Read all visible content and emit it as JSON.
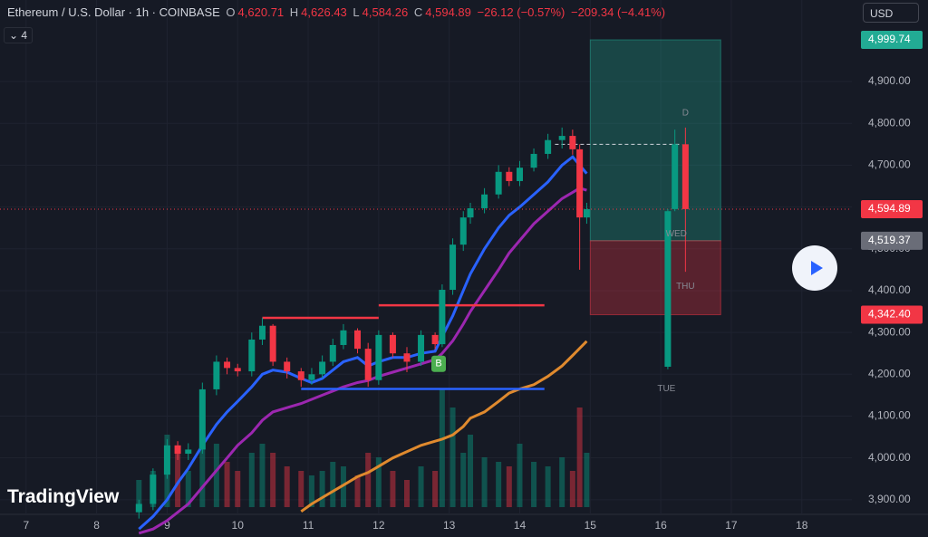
{
  "chart_data": {
    "type": "candlestick",
    "title": "Ethereum / U.S. Dollar · 1h · COINBASE",
    "legend_values": [
      {
        "key": "O",
        "value": "4,620.71"
      },
      {
        "key": "H",
        "value": "4,626.43"
      },
      {
        "key": "L",
        "value": "4,584.26"
      },
      {
        "key": "C",
        "value": "4,594.89"
      }
    ],
    "change": "−26.12 (−0.57%)",
    "change_period": "−209.34 (−4.41%)",
    "indicator_count": "4",
    "currency": "USD",
    "logo": "TradingView",
    "up_color": "#089981",
    "down_color": "#f23645",
    "xlim": [
      6.63,
      18.71
    ],
    "ylim": [
      3865,
      5095
    ],
    "xticks": [
      7,
      8,
      9,
      10,
      11,
      12,
      13,
      14,
      15,
      16,
      17,
      18
    ],
    "yticks": [
      {
        "value": 3900,
        "label": "3,900.00"
      },
      {
        "value": 4000,
        "label": "4,000.00"
      },
      {
        "value": 4100,
        "label": "4,100.00"
      },
      {
        "value": 4200,
        "label": "4,200.00"
      },
      {
        "value": 4300,
        "label": "4,300.00"
      },
      {
        "value": 4400,
        "label": "4,400.00"
      },
      {
        "value": 4500,
        "label": "4,500.00"
      },
      {
        "value": 4600,
        "label": "4,600.00"
      },
      {
        "value": 4700,
        "label": "4,700.00"
      },
      {
        "value": 4800,
        "label": "4,800.00"
      },
      {
        "value": 4900,
        "label": "4,900.00"
      }
    ],
    "grid": true,
    "x": [
      8.6,
      8.8,
      9,
      9.15,
      9.3,
      9.5,
      9.7,
      9.85,
      10,
      10.2,
      10.35,
      10.5,
      10.7,
      10.9,
      11.05,
      11.2,
      11.35,
      11.5,
      11.7,
      11.85,
      12,
      12.2,
      12.4,
      12.6,
      12.8,
      12.9,
      13.05,
      13.2,
      13.3,
      13.5,
      13.7,
      13.85,
      14,
      14.2,
      14.4,
      14.6,
      14.75,
      14.85,
      14.95
    ],
    "open": [
      3870,
      3890,
      3960,
      4030,
      4010,
      4020,
      4164,
      4230,
      4215,
      4207,
      4283,
      4316,
      4230,
      4207,
      4186,
      4200,
      4230,
      4270,
      4305,
      4261,
      4186,
      4294,
      4250,
      4230,
      4294,
      4272,
      4402,
      4510,
      4575,
      4597,
      4630,
      4684,
      4662,
      4694,
      4727,
      4760,
      4770,
      4738,
      4575
    ],
    "high": [
      3900,
      3975,
      4045,
      4040,
      4035,
      4180,
      4245,
      4240,
      4225,
      4300,
      4335,
      4320,
      4240,
      4215,
      4215,
      4245,
      4285,
      4320,
      4310,
      4275,
      4305,
      4300,
      4265,
      4305,
      4300,
      4415,
      4525,
      4590,
      4610,
      4645,
      4700,
      4695,
      4710,
      4740,
      4775,
      4790,
      4785,
      4750,
      4610
    ],
    "low": [
      3855,
      3875,
      3950,
      3995,
      3995,
      4010,
      4150,
      4200,
      4195,
      4195,
      4270,
      4220,
      4190,
      4170,
      4175,
      4190,
      4220,
      4260,
      4250,
      4170,
      4175,
      4240,
      4205,
      4220,
      4260,
      4265,
      4390,
      4495,
      4560,
      4585,
      4620,
      4650,
      4650,
      4685,
      4715,
      4740,
      4725,
      4450,
      4560
    ],
    "close": [
      3890,
      3960,
      4030,
      4010,
      4020,
      4164,
      4230,
      4215,
      4207,
      4283,
      4316,
      4230,
      4207,
      4186,
      4200,
      4230,
      4270,
      4305,
      4261,
      4186,
      4294,
      4250,
      4230,
      4294,
      4272,
      4402,
      4510,
      4575,
      4597,
      4630,
      4684,
      4662,
      4694,
      4727,
      4760,
      4770,
      4738,
      4575,
      4595
    ],
    "volume": [
      30,
      40,
      80,
      60,
      40,
      90,
      70,
      50,
      40,
      60,
      70,
      60,
      45,
      40,
      35,
      40,
      50,
      45,
      35,
      60,
      55,
      40,
      30,
      45,
      40,
      130,
      110,
      60,
      80,
      55,
      50,
      45,
      70,
      50,
      45,
      55,
      40,
      110,
      60
    ],
    "lines": [
      {
        "color": "#2962ff",
        "values": [
          3830,
          3860,
          3900,
          3940,
          3975,
          4030,
          4080,
          4110,
          4135,
          4170,
          4200,
          4210,
          4205,
          4190,
          4180,
          4190,
          4210,
          4230,
          4240,
          4220,
          4230,
          4240,
          4240,
          4250,
          4255,
          4290,
          4340,
          4400,
          4440,
          4500,
          4550,
          4580,
          4600,
          4630,
          4660,
          4700,
          4720,
          4700,
          4680
        ]
      },
      {
        "color": "#9c27b0",
        "values": [
          3820,
          3830,
          3850,
          3870,
          3890,
          3930,
          3970,
          4000,
          4030,
          4060,
          4090,
          4110,
          4120,
          4130,
          4140,
          4150,
          4160,
          4170,
          4180,
          4185,
          4195,
          4205,
          4215,
          4225,
          4235,
          4250,
          4280,
          4320,
          4350,
          4400,
          4450,
          4490,
          4520,
          4560,
          4590,
          4620,
          4635,
          4645,
          4640
        ]
      },
      {
        "color": "#e08a2e",
        "values": [
          null,
          null,
          null,
          null,
          null,
          null,
          null,
          null,
          null,
          null,
          null,
          null,
          null,
          3872,
          3890,
          3905,
          3920,
          3935,
          3955,
          3965,
          3980,
          4000,
          4015,
          4030,
          4040,
          4045,
          4055,
          4075,
          4095,
          4110,
          4135,
          4155,
          4165,
          4175,
          4195,
          4220,
          4245,
          4262,
          4279
        ]
      }
    ],
    "levels": [
      {
        "y": 4335,
        "x0": 10.35,
        "x1": 12,
        "color": "#f23645"
      },
      {
        "y": 4365,
        "x0": 12,
        "x1": 14.35,
        "color": "#f23645"
      },
      {
        "y": 4165,
        "x0": 10.9,
        "x1": 14.35,
        "color": "#2962ff"
      }
    ],
    "dashed_level": {
      "y": 4750,
      "x0": 14.5,
      "x1": 16.3
    },
    "position": {
      "x0": 15,
      "x1": 16.85,
      "entry": 4519.37,
      "target": 4999.74,
      "stop": 4342.4
    },
    "projection": [
      {
        "x": 16.1,
        "open": 4218,
        "high": 4595,
        "low": 4212,
        "close": 4590
      },
      {
        "x": 16.2,
        "open": 4595,
        "high": 4785,
        "low": 4590,
        "close": 4750
      },
      {
        "x": 16.35,
        "open": 4750,
        "high": 4790,
        "low": 4445,
        "close": 4595
      }
    ],
    "annotations": [
      {
        "text": "B",
        "x": 12.85,
        "y": 4225
      },
      {
        "text": "TUE",
        "x": 16.08,
        "y": 4165
      },
      {
        "text": "WED",
        "x": 16.22,
        "y": 4535
      },
      {
        "text": "THU",
        "x": 16.35,
        "y": 4410
      },
      {
        "text": "D",
        "x": 16.35,
        "y": 4825
      }
    ],
    "price_labels": [
      {
        "value": 4999.74,
        "label": "4,999.74",
        "color": "#22ab94"
      },
      {
        "value": 4594.89,
        "label": "4,594.89",
        "color": "#f23645"
      },
      {
        "value": 4519.37,
        "label": "4,519.37",
        "color": "#6a6d78"
      },
      {
        "value": 4342.4,
        "label": "4,342.40",
        "color": "#f23645"
      }
    ]
  }
}
